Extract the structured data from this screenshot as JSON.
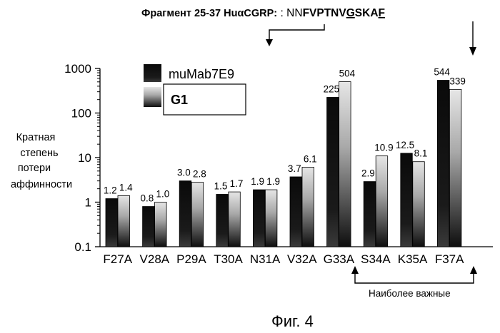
{
  "header": {
    "prefix": "Фрагмент 25-37 HuαCGRP:",
    "colons": ": ",
    "sequence_parts": [
      {
        "text": "NN",
        "bold": false,
        "underline": false
      },
      {
        "text": "FVPTNV",
        "bold": true,
        "underline": false
      },
      {
        "text": "G",
        "bold": true,
        "underline": true
      },
      {
        "text": "SKA",
        "bold": true,
        "underline": false
      },
      {
        "text": "F",
        "bold": true,
        "underline": true
      }
    ]
  },
  "ylabel_lines": [
    "Кратная",
    "степень",
    "потери",
    "аффинности"
  ],
  "annotation": "Наиболее важные",
  "figure_caption": "Фиг. 4",
  "colors": {
    "series1": "#0a0a0a",
    "series2_top": "#e6e6e6",
    "series2_bottom": "#0e0e0e",
    "axis": "#000000"
  },
  "chart_data": {
    "type": "bar",
    "title": "",
    "xlabel": "",
    "ylabel": "Кратная степень потери аффинности",
    "yscale": "log",
    "ylim": [
      0.1,
      1000
    ],
    "yticks": [
      "0.1",
      "1",
      "10",
      "100",
      "1000"
    ],
    "grid": false,
    "legend_position": "top-left",
    "categories": [
      "F27A",
      "V28A",
      "P29A",
      "T30A",
      "N31A",
      "V32A",
      "G33A",
      "S34A",
      "K35A",
      "F37A"
    ],
    "series": [
      {
        "name": "muMab7E9",
        "values": [
          1.2,
          0.8,
          3.0,
          1.5,
          1.9,
          3.7,
          225,
          2.9,
          12.5,
          544
        ],
        "labels": [
          "1.2",
          "0.8",
          "3.0",
          "1.5",
          "1.9",
          "3.7",
          "225",
          "2.9",
          "12.5",
          "544"
        ]
      },
      {
        "name": "G1",
        "values": [
          1.4,
          1.0,
          2.8,
          1.7,
          1.9,
          6.1,
          504,
          10.9,
          8.1,
          339
        ],
        "labels": [
          "1.4",
          "1.0",
          "2.8",
          "1.7",
          "1.9",
          "6.1",
          "504",
          "10.9",
          "8.1",
          "339"
        ]
      }
    ]
  }
}
